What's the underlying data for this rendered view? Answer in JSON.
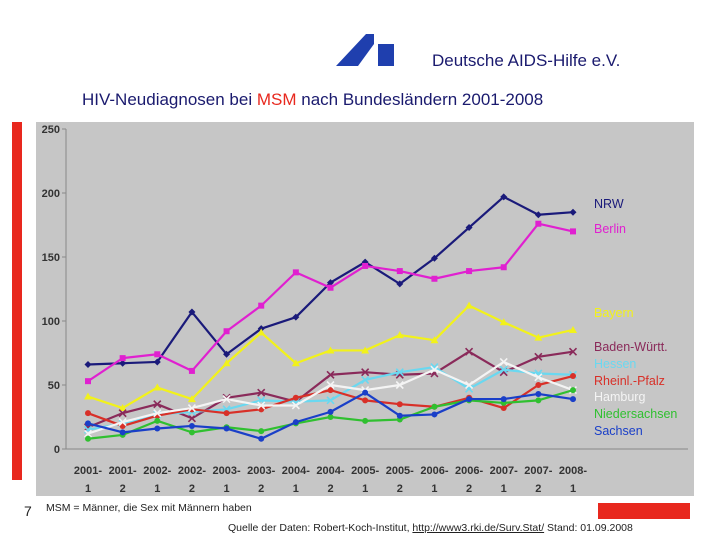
{
  "header": {
    "org_name": "Deutsche AIDS-Hilfe e.V.",
    "logo_icon": "dah-logo-icon",
    "brand_color": "#1f3fae"
  },
  "title": {
    "prefix": "HIV-Neudiagnosen bei ",
    "highlight": "MSM",
    "suffix": " nach Bundesländern 2001-2008"
  },
  "chart_data": {
    "type": "line",
    "title": "HIV-Neudiagnosen bei MSM nach Bundesländern 2001-2008",
    "xlabel": "",
    "ylabel": "",
    "ylim": [
      0,
      250
    ],
    "yticks": [
      0,
      50,
      100,
      150,
      200,
      250
    ],
    "grid": false,
    "legend_position": "right",
    "categories": [
      {
        "year": "2001-",
        "half": "1"
      },
      {
        "year": "2001-",
        "half": "2"
      },
      {
        "year": "2002-",
        "half": "1"
      },
      {
        "year": "2002-",
        "half": "2"
      },
      {
        "year": "2003-",
        "half": "1"
      },
      {
        "year": "2003-",
        "half": "2"
      },
      {
        "year": "2004-",
        "half": "1"
      },
      {
        "year": "2004-",
        "half": "2"
      },
      {
        "year": "2005-",
        "half": "1"
      },
      {
        "year": "2005-",
        "half": "2"
      },
      {
        "year": "2006-",
        "half": "1"
      },
      {
        "year": "2006-",
        "half": "2"
      },
      {
        "year": "2007-",
        "half": "1"
      },
      {
        "year": "2007-",
        "half": "2"
      },
      {
        "year": "2008-",
        "half": "1"
      }
    ],
    "series": [
      {
        "name": "NRW",
        "color": "#1a1a7a",
        "marker": "diamond",
        "values": [
          66,
          67,
          68,
          107,
          74,
          94,
          103,
          130,
          146,
          129,
          149,
          173,
          197,
          183,
          185
        ]
      },
      {
        "name": "Berlin",
        "color": "#e020d0",
        "marker": "square",
        "values": [
          53,
          71,
          74,
          61,
          92,
          112,
          138,
          126,
          143,
          139,
          133,
          139,
          142,
          176,
          170
        ]
      },
      {
        "name": "Bayern",
        "color": "#f2f21a",
        "marker": "triangle",
        "values": [
          41,
          32,
          48,
          39,
          67,
          91,
          67,
          77,
          77,
          89,
          85,
          112,
          99,
          87,
          93
        ]
      },
      {
        "name": "Baden-Württ.",
        "color": "#8a2a5a",
        "marker": "x",
        "values": [
          17,
          28,
          35,
          24,
          40,
          44,
          37,
          58,
          60,
          58,
          59,
          76,
          60,
          72,
          76
        ]
      },
      {
        "name": "Hessen",
        "color": "#6ad8f0",
        "marker": "x",
        "values": [
          15,
          20,
          27,
          29,
          31,
          38,
          37,
          38,
          54,
          60,
          64,
          47,
          62,
          59,
          58
        ]
      },
      {
        "name": "Rheinl.-Pfalz",
        "color": "#d83028",
        "marker": "circle",
        "values": [
          28,
          18,
          26,
          31,
          28,
          31,
          40,
          46,
          38,
          35,
          33,
          40,
          32,
          50,
          57
        ]
      },
      {
        "name": "Hamburg",
        "color": "#f4f4f4",
        "marker": "x",
        "values": [
          12,
          21,
          28,
          32,
          39,
          34,
          34,
          50,
          46,
          50,
          62,
          50,
          68,
          56,
          46
        ]
      },
      {
        "name": "Niedersachsen",
        "color": "#30c030",
        "marker": "circle",
        "values": [
          8,
          11,
          22,
          13,
          17,
          14,
          20,
          25,
          22,
          23,
          33,
          38,
          36,
          38,
          46
        ]
      },
      {
        "name": "Sachsen",
        "color": "#1a3fc8",
        "marker": "circle",
        "values": [
          20,
          13,
          16,
          18,
          16,
          8,
          21,
          29,
          44,
          26,
          27,
          39,
          39,
          43,
          39
        ]
      }
    ]
  },
  "page_number": "7",
  "footnote": "MSM = Männer, die Sex mit Männern haben",
  "source": {
    "prefix": "Quelle der Daten: Robert-Koch-Institut, ",
    "link": "http://www3.rki.de/Surv.Stat/",
    "suffix": " Stand: 01.09.2008"
  },
  "accent_color": "#e8281e"
}
